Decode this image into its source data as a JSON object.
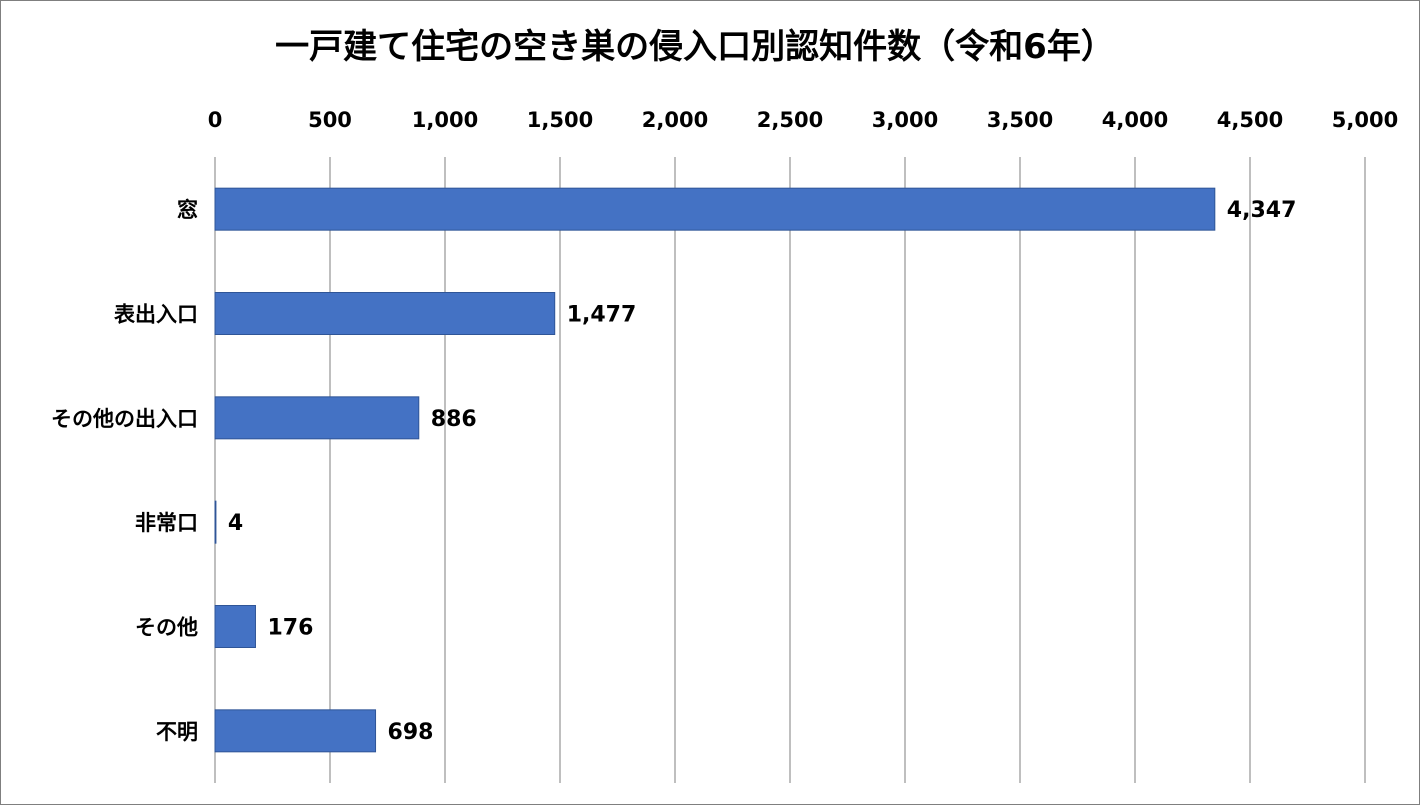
{
  "chart_data": {
    "type": "bar",
    "orientation": "horizontal",
    "title": "一戸建て住宅の空き巣の侵入口別認知件数（令和6年）",
    "categories": [
      "窓",
      "表出入口",
      "その他の出入口",
      "非常口",
      "その他",
      "不明"
    ],
    "series": [
      {
        "values": [
          4347,
          1477,
          886,
          4,
          176,
          698
        ],
        "data_labels": [
          "4,347",
          "1,477",
          "886",
          "4",
          "176",
          "698"
        ]
      }
    ],
    "xlim": [
      0,
      5000
    ],
    "x_ticks": [
      0,
      500,
      1000,
      1500,
      2000,
      2500,
      3000,
      3500,
      4000,
      4500,
      5000
    ],
    "x_tick_labels": [
      "0",
      "500",
      "1,000",
      "1,500",
      "2,000",
      "2,500",
      "3,000",
      "3,500",
      "4,000",
      "4,500",
      "5,000"
    ],
    "x_axis_position": "top",
    "grid": true,
    "legend": "none",
    "colors": {
      "bar": "#4472c4",
      "bar_border": "#2f5597",
      "grid": "#7f7f7f",
      "text": "#000000"
    }
  }
}
